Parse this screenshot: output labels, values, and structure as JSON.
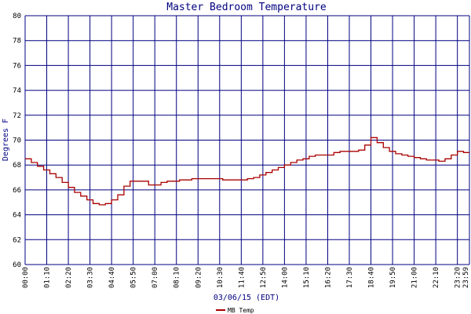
{
  "chart_data": {
    "type": "line",
    "title": "Master Bedroom Temperature",
    "xlabel": "03/06/15 (EDT)",
    "ylabel": "Degrees F",
    "ylim": [
      60,
      80
    ],
    "yticks": [
      60,
      62,
      64,
      66,
      68,
      70,
      72,
      74,
      76,
      78,
      80
    ],
    "xlim": [
      "00:00",
      "23:59"
    ],
    "xticks": [
      "00:00",
      "01:10",
      "02:20",
      "03:30",
      "04:40",
      "05:50",
      "07:00",
      "08:10",
      "09:20",
      "10:30",
      "11:40",
      "12:50",
      "14:00",
      "15:10",
      "16:20",
      "17:30",
      "18:40",
      "19:50",
      "21:00",
      "22:10",
      "23:20",
      "23:59"
    ],
    "grid": true,
    "legend": {
      "position": "bottom-left"
    },
    "colors": {
      "grid": "#000080",
      "series": "#aa0000",
      "title": "#000080"
    },
    "series": [
      {
        "name": "MB Temp",
        "x": [
          "00:00",
          "00:20",
          "00:40",
          "01:00",
          "01:20",
          "01:40",
          "02:00",
          "02:20",
          "02:40",
          "03:00",
          "03:20",
          "03:40",
          "04:00",
          "04:20",
          "04:40",
          "05:00",
          "05:20",
          "05:40",
          "06:00",
          "06:20",
          "06:40",
          "07:00",
          "07:20",
          "07:40",
          "08:00",
          "08:20",
          "08:40",
          "09:00",
          "09:20",
          "09:40",
          "10:00",
          "10:20",
          "10:40",
          "11:00",
          "11:20",
          "11:40",
          "12:00",
          "12:20",
          "12:40",
          "13:00",
          "13:20",
          "13:40",
          "14:00",
          "14:20",
          "14:40",
          "15:00",
          "15:20",
          "15:40",
          "16:00",
          "16:20",
          "16:40",
          "17:00",
          "17:20",
          "17:40",
          "18:00",
          "18:20",
          "18:40",
          "19:00",
          "19:20",
          "19:40",
          "20:00",
          "20:20",
          "20:40",
          "21:00",
          "21:20",
          "21:40",
          "22:00",
          "22:20",
          "22:40",
          "23:00",
          "23:20",
          "23:40",
          "23:59"
        ],
        "y": [
          68.5,
          68.2,
          67.9,
          67.6,
          67.3,
          67.0,
          66.6,
          66.2,
          65.8,
          65.5,
          65.2,
          64.9,
          64.8,
          64.9,
          65.2,
          65.6,
          66.3,
          66.7,
          66.7,
          66.7,
          66.4,
          66.4,
          66.6,
          66.7,
          66.7,
          66.8,
          66.8,
          66.9,
          66.9,
          66.9,
          66.9,
          66.9,
          66.8,
          66.8,
          66.8,
          66.8,
          66.9,
          67.0,
          67.2,
          67.4,
          67.6,
          67.8,
          68.0,
          68.2,
          68.4,
          68.5,
          68.7,
          68.8,
          68.8,
          68.8,
          69.0,
          69.1,
          69.1,
          69.1,
          69.2,
          69.6,
          70.2,
          69.8,
          69.4,
          69.1,
          68.9,
          68.8,
          68.7,
          68.6,
          68.5,
          68.4,
          68.4,
          68.3,
          68.5,
          68.8,
          69.1,
          69.0,
          69.0
        ]
      }
    ]
  }
}
